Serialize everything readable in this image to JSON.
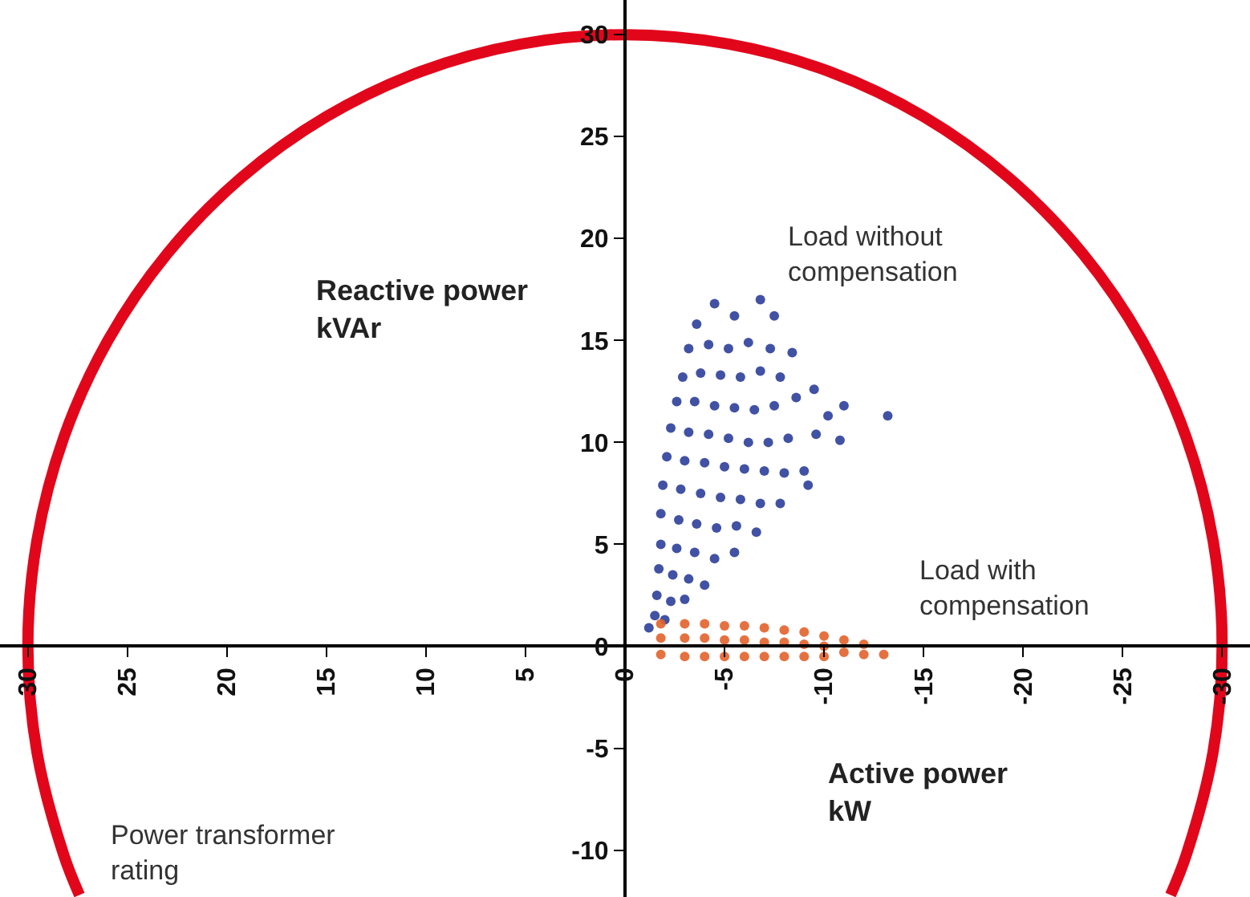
{
  "chart_data": {
    "type": "scatter",
    "xlabel": "Active power\nkW",
    "ylabel": "Reactive power\nkVAr",
    "xlim": [
      31.4,
      -31.4
    ],
    "ylim": [
      -12.3,
      31.7
    ],
    "xticks": [
      30,
      25,
      20,
      15,
      10,
      5,
      0,
      -5,
      -10,
      -15,
      -20,
      -25,
      -30
    ],
    "yticks": [
      -10,
      -5,
      0,
      5,
      10,
      15,
      20,
      25,
      30
    ],
    "grid": false,
    "marker": "circle",
    "annotations": [
      "Load without\ncompensation",
      "Load with\ncompensation",
      "Power transformer\nrating"
    ],
    "series": [
      {
        "type": "line",
        "line_style": "solid",
        "marker": "none",
        "color": "#e2061b",
        "x": [
          27.41,
          28.19,
          29.54,
          30,
          29.54,
          28.19,
          25.98,
          22.98,
          19.28,
          15,
          10.26,
          5.21,
          0,
          -5.21,
          -10.26,
          -15,
          -19.28,
          -22.98,
          -25.98,
          -28.19,
          -29.54,
          -30,
          -29.54,
          -28.19,
          -27.41
        ],
        "values": [
          -12.2,
          -10.26,
          -5.21,
          0,
          5.21,
          10.26,
          15,
          19.28,
          22.98,
          25.98,
          28.19,
          29.54,
          30,
          29.54,
          28.19,
          25.98,
          22.98,
          19.28,
          15,
          10.26,
          5.21,
          0,
          -5.21,
          -10.26,
          -12.2
        ]
      },
      {
        "color": "#2c3f9a",
        "x": [
          -1.2,
          -1.5,
          -2,
          -1.6,
          -2.3,
          -3,
          -1.7,
          -2.4,
          -3.2,
          -4,
          -1.8,
          -2.6,
          -3.5,
          -4.5,
          -5.5,
          -1.8,
          -2.7,
          -3.6,
          -4.6,
          -5.6,
          -6.6,
          -1.9,
          -2.8,
          -3.8,
          -4.8,
          -5.8,
          -6.8,
          -7.8,
          -9.2,
          -2.1,
          -3,
          -4,
          -5,
          -6,
          -7,
          -8,
          -9,
          -2.3,
          -3.2,
          -4.2,
          -5.2,
          -6.2,
          -7.2,
          -8.2,
          -9.6,
          -10.2,
          -2.6,
          -3.5,
          -4.5,
          -5.5,
          -6.5,
          -7.5,
          -8.6,
          -9.5,
          -2.9,
          -3.8,
          -4.8,
          -5.8,
          -6.8,
          -7.8,
          -8.4,
          -3.2,
          -4.2,
          -5.2,
          -6.2,
          -7.3,
          -3.6,
          -4.5,
          -5.5,
          -6.8,
          -7.5,
          -13.2,
          -11,
          -10.8
        ],
        "values": [
          0.9,
          1.5,
          1.3,
          2.5,
          2.2,
          2.3,
          3.8,
          3.5,
          3.3,
          3,
          5,
          4.8,
          4.6,
          4.3,
          4.6,
          6.5,
          6.2,
          6,
          5.8,
          5.9,
          5.6,
          7.9,
          7.7,
          7.5,
          7.3,
          7.2,
          7,
          7,
          7.9,
          9.3,
          9.1,
          9,
          8.8,
          8.7,
          8.6,
          8.5,
          8.6,
          10.7,
          10.5,
          10.4,
          10.2,
          10,
          10,
          10.2,
          10.4,
          11.3,
          12,
          12,
          11.8,
          11.7,
          11.6,
          11.8,
          12.2,
          12.6,
          13.2,
          13.4,
          13.3,
          13.2,
          13.5,
          13.2,
          14.4,
          14.6,
          14.8,
          14.6,
          14.9,
          14.6,
          15.8,
          16.8,
          16.2,
          17,
          16.2,
          11.3,
          11.8,
          10.1
        ]
      },
      {
        "color": "#e3622b",
        "x": [
          -1.8,
          -1.8,
          -1.8,
          -3,
          -3,
          -3,
          -4,
          -4,
          -4,
          -5,
          -5,
          -5,
          -6,
          -6,
          -6,
          -7,
          -7,
          -7,
          -8,
          -8,
          -8,
          -9,
          -9,
          -9,
          -10,
          -10,
          -10,
          -11,
          -11,
          -12,
          -12,
          -13
        ],
        "values": [
          1.1,
          0.4,
          -0.4,
          1.1,
          0.4,
          -0.5,
          1.1,
          0.4,
          -0.5,
          1.0,
          0.3,
          -0.5,
          1.0,
          0.3,
          -0.5,
          0.9,
          0.2,
          -0.5,
          0.8,
          0.2,
          -0.5,
          0.7,
          0.1,
          -0.5,
          0.5,
          0,
          -0.5,
          0.3,
          -0.3,
          0.1,
          -0.4,
          -0.4
        ]
      }
    ]
  }
}
